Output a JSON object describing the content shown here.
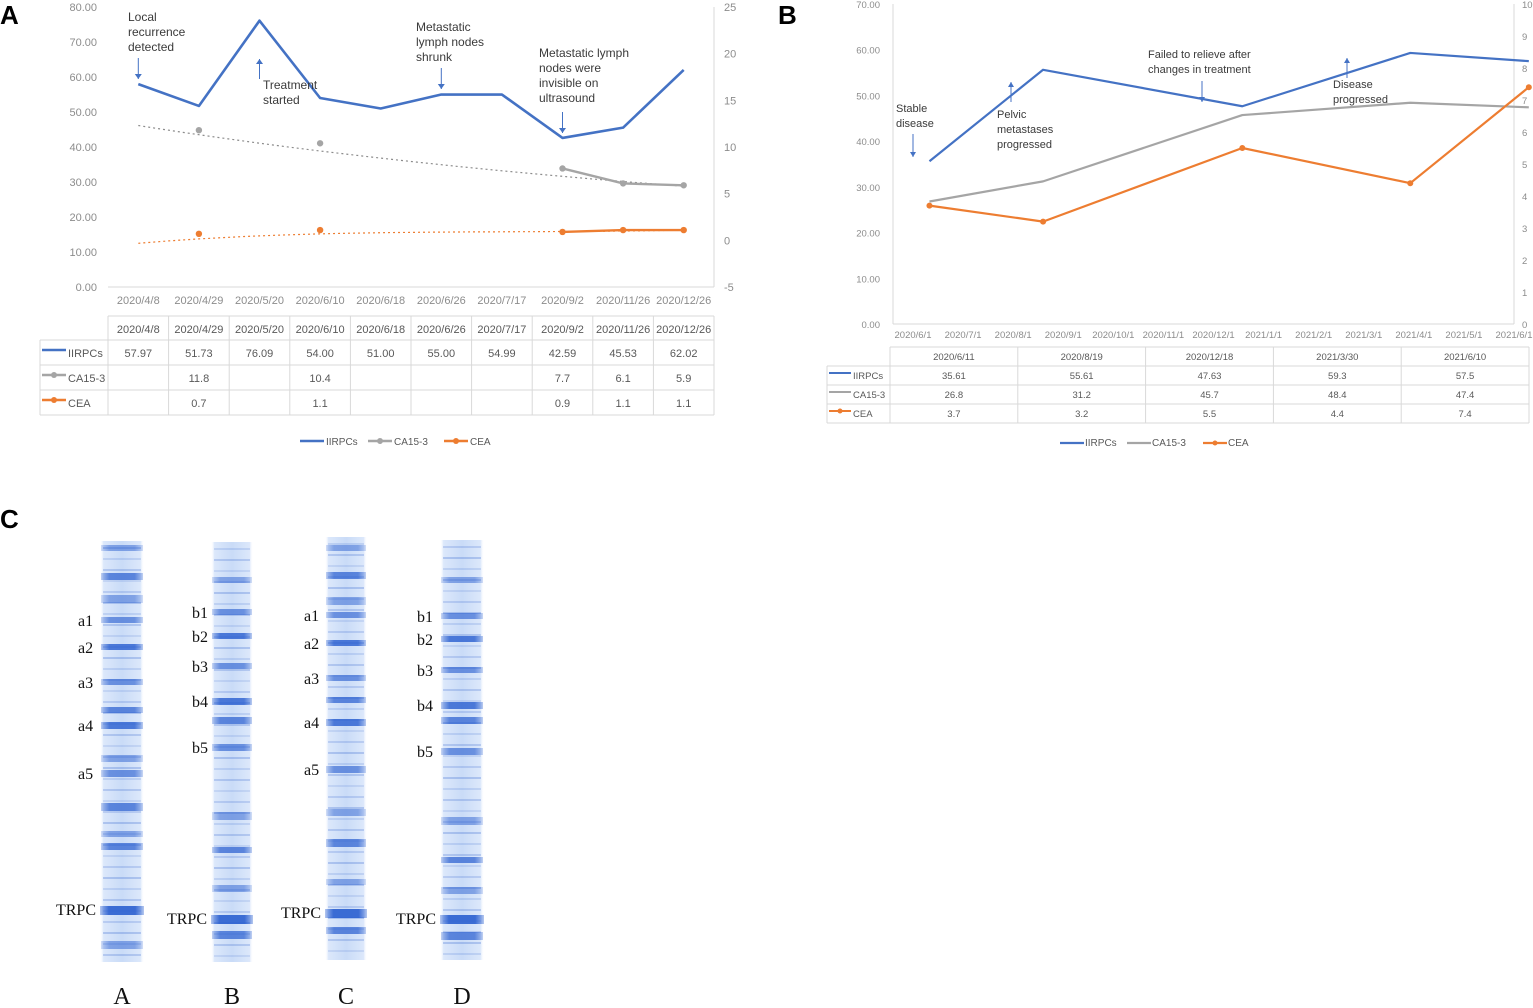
{
  "colors": {
    "iirpcs": "#4472c4",
    "ca153": "#a5a5a5",
    "cea": "#ed7d31",
    "gel_band": "#1f55c8"
  },
  "chart_data": [
    {
      "panel": "A",
      "type": "line",
      "categories": [
        "2020/4/8",
        "2020/4/29",
        "2020/5/20",
        "2020/6/10",
        "2020/6/18",
        "2020/6/26",
        "2020/7/17",
        "2020/9/2",
        "2020/11/26",
        "2020/12/26"
      ],
      "left_axis": {
        "ylim": [
          0,
          80
        ],
        "ticks": [
          "0.00",
          "10.00",
          "20.00",
          "30.00",
          "40.00",
          "50.00",
          "60.00",
          "70.00",
          "80.00"
        ]
      },
      "right_axis": {
        "ylim": [
          -5,
          25
        ],
        "ticks": [
          "-5",
          "0",
          "5",
          "10",
          "15",
          "20",
          "25"
        ]
      },
      "series": [
        {
          "name": "IIRPCs",
          "axis": "left",
          "values": [
            57.97,
            51.73,
            76.09,
            54.0,
            51.0,
            55.0,
            54.99,
            42.59,
            45.53,
            62.02
          ],
          "labels": [
            "57.97",
            "51.73",
            "76.09",
            "54.00",
            "51.00",
            "55.00",
            "54.99",
            "42.59",
            "45.53",
            "62.02"
          ]
        },
        {
          "name": "CA15-3",
          "axis": "right",
          "values": [
            null,
            11.8,
            null,
            10.4,
            null,
            null,
            null,
            7.7,
            6.1,
            5.9
          ],
          "labels": [
            "",
            "11.8",
            "",
            "10.4",
            "",
            "",
            "",
            "7.7",
            "6.1",
            "5.9"
          ]
        },
        {
          "name": "CEA",
          "axis": "right",
          "values": [
            null,
            0.7,
            null,
            1.1,
            null,
            null,
            null,
            0.9,
            1.1,
            1.1
          ],
          "labels": [
            "",
            "0.7",
            "",
            "1.1",
            "",
            "",
            "",
            "0.9",
            "1.1",
            "1.1"
          ]
        }
      ],
      "annotations": [
        {
          "index": 0,
          "value": 57.97,
          "lines": [
            "Local",
            "recurrence",
            "detected"
          ],
          "arrow": "down"
        },
        {
          "index": 2,
          "value": 63.5,
          "lines": [
            "Treatment",
            "started"
          ],
          "arrow": "up"
        },
        {
          "index": 5,
          "value": 55.0,
          "lines": [
            "Metastatic",
            "lymph nodes",
            "shrunk"
          ],
          "arrow": "down"
        },
        {
          "index": 7,
          "value": 42.59,
          "lines": [
            "Metastatic lymph",
            "nodes were",
            "invisible on",
            "ultrasound"
          ],
          "arrow": "down"
        }
      ],
      "legend": [
        "IIRPCs",
        "CA15-3",
        "CEA"
      ]
    },
    {
      "panel": "B",
      "type": "line",
      "x_ticks": [
        "2020/6/1",
        "2020/7/1",
        "2020/8/1",
        "2020/9/1",
        "2020/10/1",
        "2020/11/1",
        "2020/12/1",
        "2021/1/1",
        "2021/2/1",
        "2021/3/1",
        "2021/4/1",
        "2021/5/1",
        "2021/6/1"
      ],
      "left_axis": {
        "ylim": [
          0,
          70
        ],
        "ticks": [
          "0.00",
          "10.00",
          "20.00",
          "30.00",
          "40.00",
          "50.00",
          "60.00",
          "70.00"
        ]
      },
      "right_axis": {
        "ylim": [
          0,
          10
        ],
        "ticks": [
          "0",
          "1",
          "2",
          "3",
          "4",
          "5",
          "6",
          "7",
          "8",
          "9",
          "10"
        ]
      },
      "dates": [
        "2020/6/11",
        "2020/8/19",
        "2020/12/18",
        "2021/3/30",
        "2021/6/10"
      ],
      "series": [
        {
          "name": "IIRPCs",
          "axis": "left",
          "values": [
            35.61,
            55.61,
            47.63,
            59.3,
            57.5
          ],
          "labels": [
            "35.61",
            "55.61",
            "47.63",
            "59.3",
            "57.5"
          ]
        },
        {
          "name": "CA15-3",
          "axis": "left",
          "values": [
            26.8,
            31.2,
            45.7,
            48.4,
            47.4
          ],
          "labels": [
            "26.8",
            "31.2",
            "45.7",
            "48.4",
            "47.4"
          ]
        },
        {
          "name": "CEA",
          "axis": "right",
          "values": [
            3.7,
            3.2,
            5.5,
            4.4,
            7.4
          ],
          "labels": [
            "3.7",
            "3.2",
            "5.5",
            "4.4",
            "7.4"
          ]
        }
      ],
      "annotations": [
        {
          "index": 0,
          "value": 35.61,
          "lines": [
            "Stable",
            "disease"
          ],
          "arrow": "down"
        },
        {
          "index": 1,
          "value": 55.61,
          "lines": [
            "Pelvic",
            "metastases",
            "progressed"
          ],
          "arrow": "up"
        },
        {
          "index": 2,
          "value": 47.63,
          "lines": [
            "Failed to relieve after",
            "changes in treatment"
          ],
          "arrow": "down"
        },
        {
          "index": 3,
          "value": 59.3,
          "lines": [
            "Disease",
            "progressed"
          ],
          "arrow": "up"
        }
      ],
      "legend": [
        "IIRPCs",
        "CA15-3",
        "CEA"
      ]
    },
    {
      "panel": "C",
      "type": "gel",
      "lanes": [
        {
          "name": "A",
          "band_labels": [
            "a1",
            "a2",
            "a3",
            "a4",
            "a5"
          ]
        },
        {
          "name": "B",
          "band_labels": [
            "b1",
            "b2",
            "b3",
            "b4",
            "b5"
          ]
        },
        {
          "name": "C",
          "band_labels": [
            "a1",
            "a2",
            "a3",
            "a4",
            "a5"
          ]
        },
        {
          "name": "D",
          "band_labels": [
            "b1",
            "b2",
            "b3",
            "b4",
            "b5"
          ]
        }
      ],
      "reference_band": "TRPC"
    }
  ]
}
